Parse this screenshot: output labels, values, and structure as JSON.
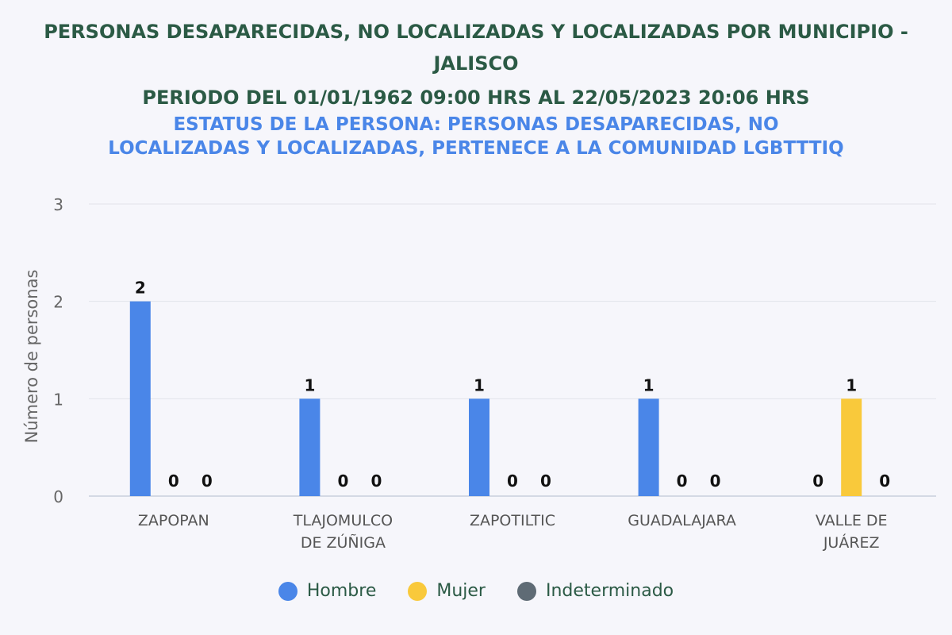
{
  "chart_data": {
    "type": "bar",
    "title_line1": "PERSONAS DESAPARECIDAS, NO LOCALIZADAS Y LOCALIZADAS POR MUNICIPIO - JALISCO",
    "title_line2": "PERIODO DEL 01/01/1962 09:00 HRS AL 22/05/2023 20:06 HRS",
    "subtitle": "ESTATUS DE LA PERSONA: PERSONAS DESAPARECIDAS, NO LOCALIZADAS Y LOCALIZADAS, PERTENECE A LA COMUNIDAD LGBTTTIQ",
    "xlabel": "",
    "ylabel": "Número de personas",
    "ylim": [
      0,
      3
    ],
    "yticks": [
      0,
      1,
      2,
      3
    ],
    "grid": true,
    "legend_position": "bottom",
    "categories": [
      [
        "ZAPOPAN"
      ],
      [
        "TLAJOMULCO",
        "DE ZÚÑIGA"
      ],
      [
        "ZAPOTILTIC"
      ],
      [
        "GUADALAJARA"
      ],
      [
        "VALLE DE",
        "JUÁREZ"
      ]
    ],
    "series": [
      {
        "name": "Hombre",
        "color": "#4a86e8",
        "values": [
          2,
          1,
          1,
          1,
          0
        ]
      },
      {
        "name": "Mujer",
        "color": "#f9c93b",
        "values": [
          0,
          0,
          0,
          0,
          1
        ]
      },
      {
        "name": "Indeterminado",
        "color": "#5f6b75",
        "values": [
          0,
          0,
          0,
          0,
          0
        ]
      }
    ]
  }
}
